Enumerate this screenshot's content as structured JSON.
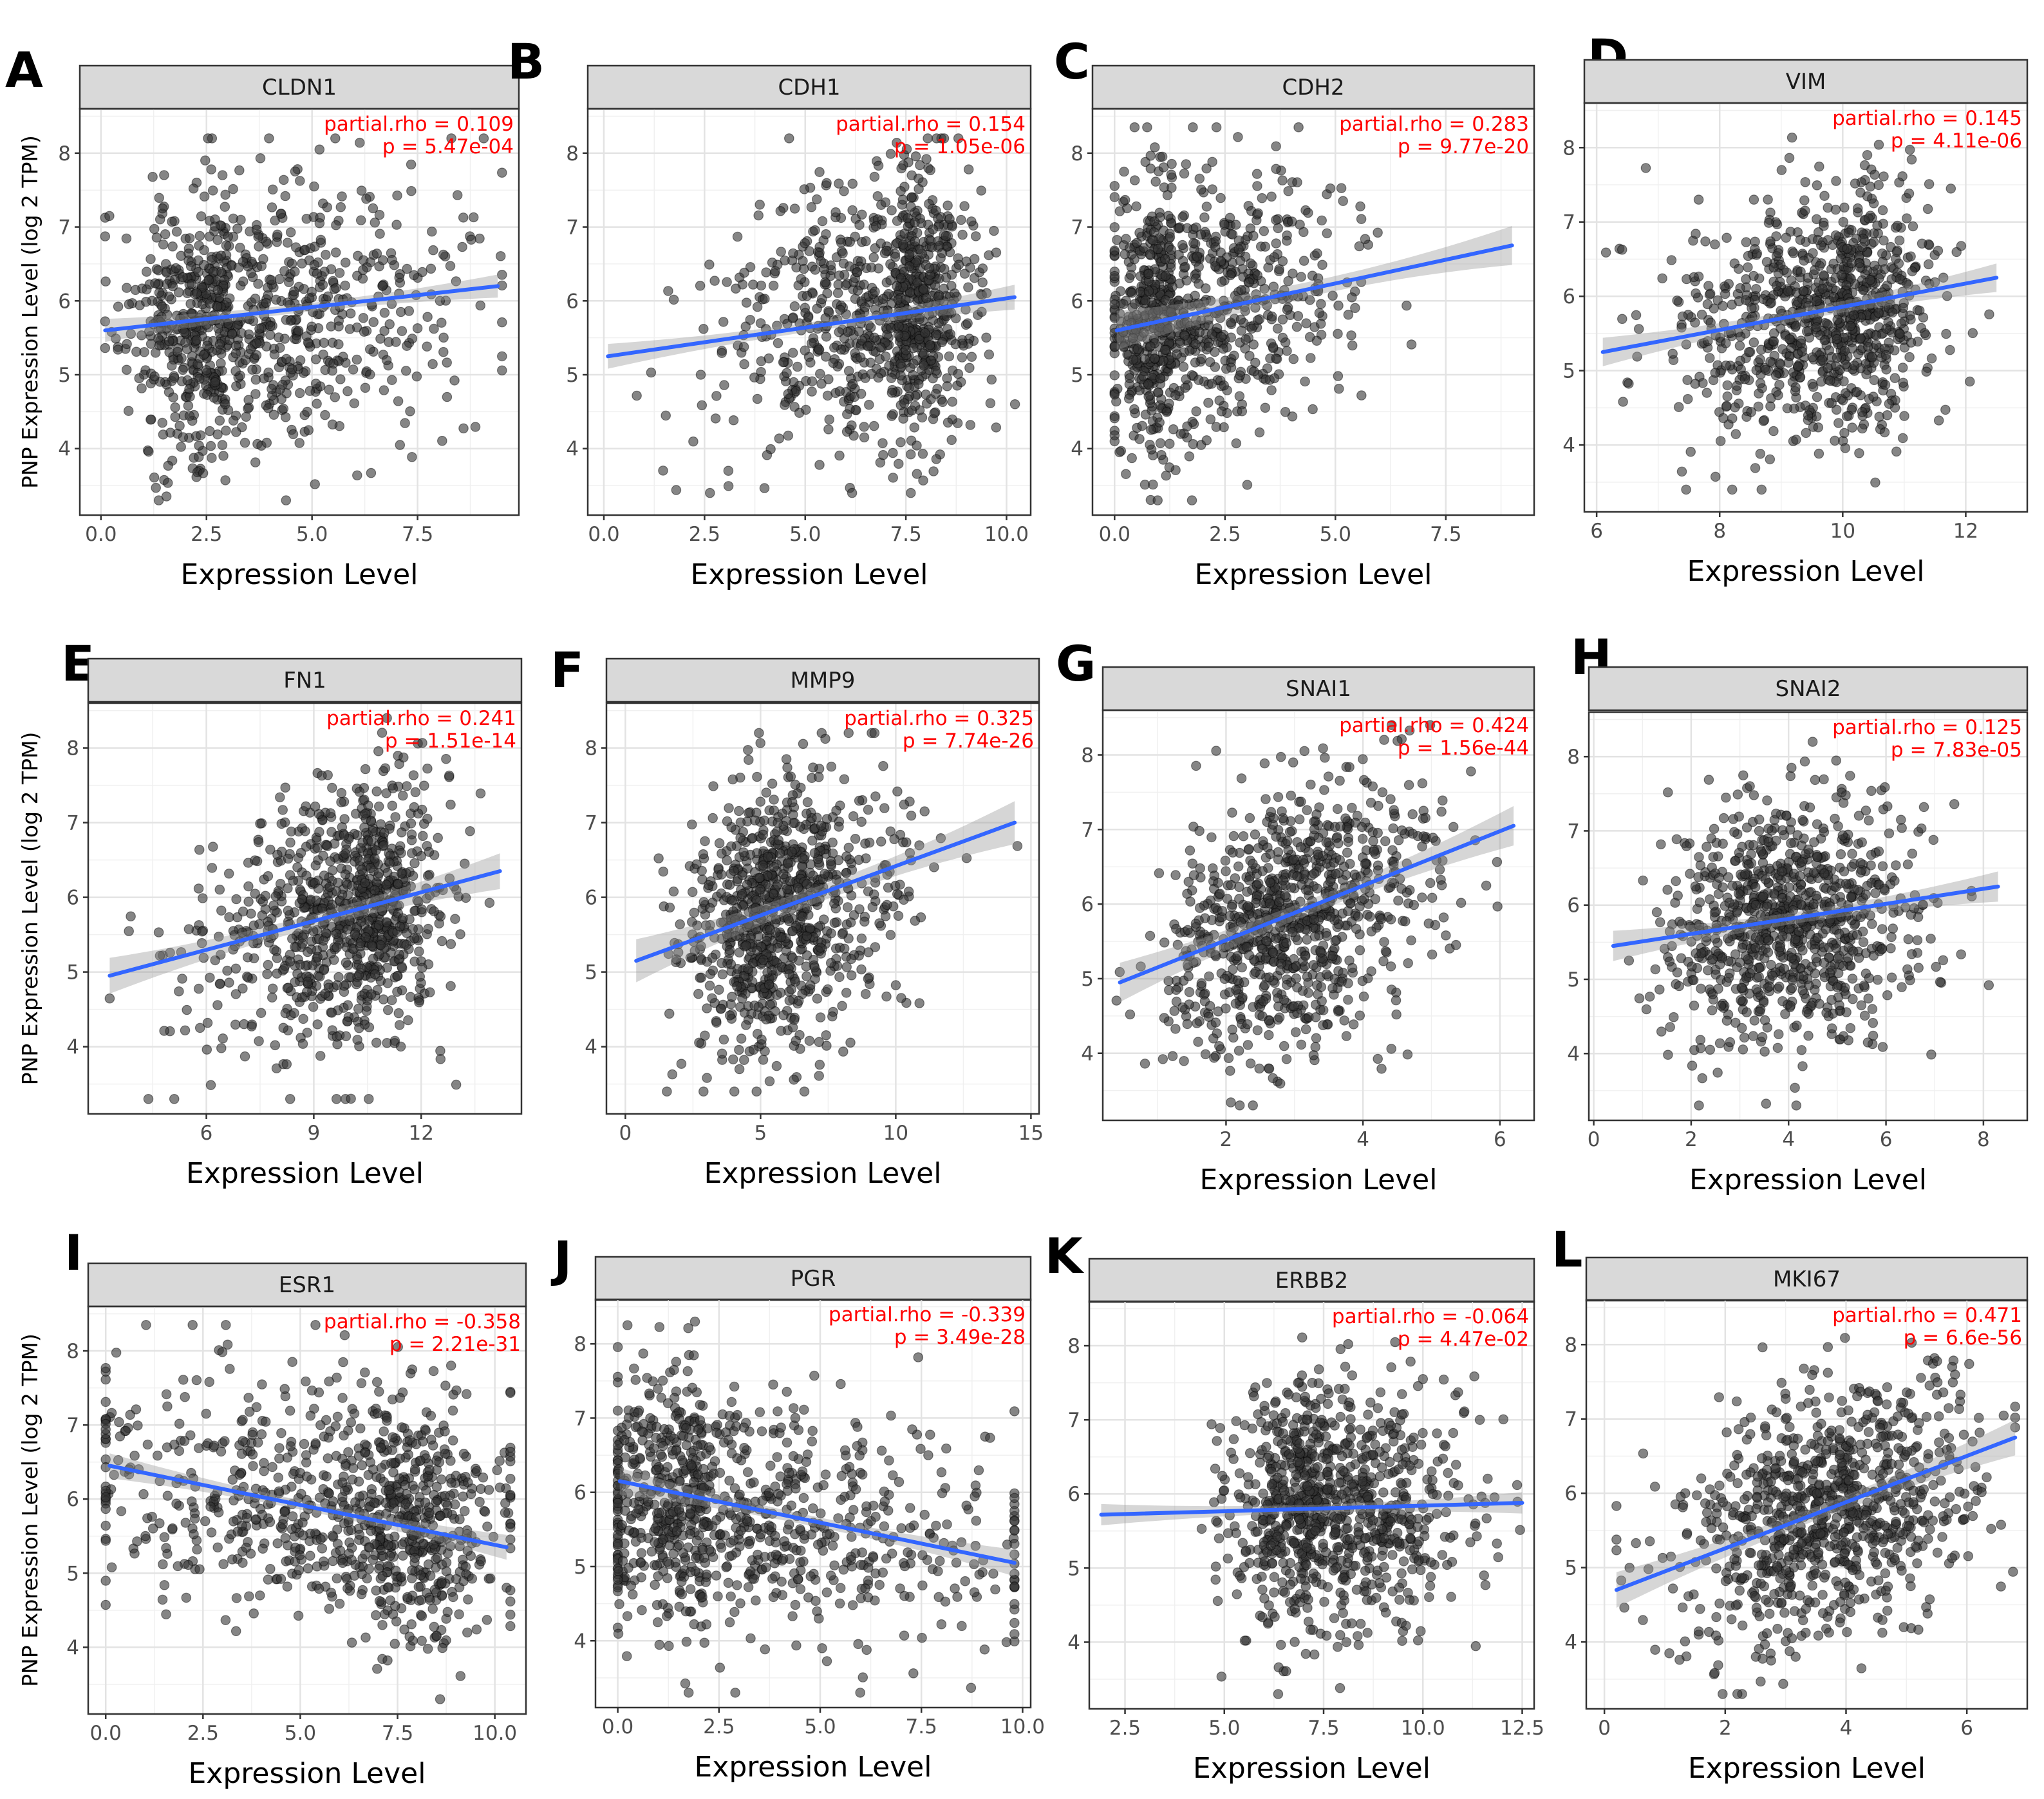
{
  "figure": {
    "y_axis_title": "PNP Expression Level (log 2 TPM)",
    "x_axis_title": "Expression Level"
  },
  "chart_data": [
    {
      "letter": "A",
      "type": "scatter",
      "title": "CLDN1",
      "rho_text": "partial.rho = 0.109",
      "p_text": "p = 5.47e-04",
      "xlim": [
        -0.5,
        9.9
      ],
      "ylim": [
        3.1,
        8.6
      ],
      "xticks": [
        0,
        2.5,
        5,
        7.5
      ],
      "xtick_labels": [
        "0.0",
        "2.5",
        "5.0",
        "7.5"
      ],
      "yticks": [
        4,
        5,
        6,
        7,
        8
      ],
      "ytick_labels": [
        "4",
        "5",
        "6",
        "7",
        "8"
      ],
      "fit": {
        "x0": 0.1,
        "y0": 5.6,
        "x1": 9.4,
        "y1": 6.2,
        "band": 0.13
      },
      "points": {
        "n": 900,
        "mean_x": 3.0,
        "sd_x": 1.8,
        "skew_x": 1.2,
        "min_x": 0.1,
        "max_x": 9.5,
        "mean_y": 5.75,
        "sd_y": 0.9,
        "min_y": 3.3,
        "max_y": 8.2,
        "seed": 11
      }
    },
    {
      "letter": "B",
      "type": "scatter",
      "title": "CDH1",
      "rho_text": "partial.rho = 0.154",
      "p_text": "p = 1.05e-06",
      "xlim": [
        -0.4,
        10.6
      ],
      "ylim": [
        3.1,
        8.6
      ],
      "xticks": [
        0,
        2.5,
        5,
        7.5,
        10
      ],
      "xtick_labels": [
        "0.0",
        "2.5",
        "5.0",
        "7.5",
        "10.0"
      ],
      "yticks": [
        4,
        5,
        6,
        7,
        8
      ],
      "ytick_labels": [
        "4",
        "5",
        "6",
        "7",
        "8"
      ],
      "fit": {
        "x0": 0.1,
        "y0": 5.25,
        "x1": 10.2,
        "y1": 6.05,
        "band": 0.14
      },
      "points": {
        "n": 900,
        "mean_x": 7.3,
        "sd_x": 1.4,
        "skew_x": -1.5,
        "min_x": 0.2,
        "max_x": 10.3,
        "mean_y": 5.85,
        "sd_y": 0.9,
        "min_y": 3.4,
        "max_y": 8.2,
        "seed": 23
      }
    },
    {
      "letter": "C",
      "type": "scatter",
      "title": "CDH2",
      "rho_text": "partial.rho = 0.283",
      "p_text": "p = 9.77e-20",
      "xlim": [
        -0.5,
        9.5
      ],
      "ylim": [
        3.1,
        8.6
      ],
      "xticks": [
        0,
        2.5,
        5,
        7.5
      ],
      "xtick_labels": [
        "0.0",
        "2.5",
        "5.0",
        "7.5"
      ],
      "yticks": [
        4,
        5,
        6,
        7,
        8
      ],
      "ytick_labels": [
        "4",
        "5",
        "6",
        "7",
        "8"
      ],
      "fit": {
        "x0": 0.05,
        "y0": 5.6,
        "x1": 9.0,
        "y1": 6.75,
        "band": 0.22
      },
      "points": {
        "n": 900,
        "mean_x": 1.3,
        "sd_x": 1.2,
        "skew_x": 1.6,
        "min_x": 0.0,
        "max_x": 9.0,
        "mean_y": 5.85,
        "sd_y": 0.9,
        "min_y": 3.3,
        "max_y": 8.35,
        "seed": 37
      }
    },
    {
      "letter": "D",
      "type": "scatter",
      "title": "VIM",
      "rho_text": "partial.rho = 0.145",
      "p_text": "p = 4.11e-06",
      "xlim": [
        5.8,
        13.0
      ],
      "ylim": [
        3.1,
        8.6
      ],
      "xticks": [
        6,
        8,
        10,
        12
      ],
      "xtick_labels": [
        "6",
        "8",
        "10",
        "12"
      ],
      "yticks": [
        4,
        5,
        6,
        7,
        8
      ],
      "ytick_labels": [
        "4",
        "5",
        "6",
        "7",
        "8"
      ],
      "fit": {
        "x0": 6.1,
        "y0": 5.25,
        "x1": 12.5,
        "y1": 6.25,
        "band": 0.16
      },
      "points": {
        "n": 900,
        "mean_x": 9.9,
        "sd_x": 1.0,
        "skew_x": -0.6,
        "min_x": 6.0,
        "max_x": 12.6,
        "mean_y": 5.8,
        "sd_y": 0.85,
        "min_y": 3.4,
        "max_y": 8.3,
        "seed": 41
      }
    },
    {
      "letter": "E",
      "type": "scatter",
      "title": "FN1",
      "rho_text": "partial.rho = 0.241",
      "p_text": "p = 1.51e-14",
      "xlim": [
        2.7,
        14.8
      ],
      "ylim": [
        3.1,
        8.6
      ],
      "xticks": [
        6,
        9,
        12
      ],
      "xtick_labels": [
        "6",
        "9",
        "12"
      ],
      "yticks": [
        4,
        5,
        6,
        7,
        8
      ],
      "ytick_labels": [
        "4",
        "5",
        "6",
        "7",
        "8"
      ],
      "fit": {
        "x0": 3.3,
        "y0": 4.95,
        "x1": 14.2,
        "y1": 6.35,
        "band": 0.2
      },
      "points": {
        "n": 900,
        "mean_x": 10.2,
        "sd_x": 1.6,
        "skew_x": -0.8,
        "min_x": 3.3,
        "max_x": 14.3,
        "mean_y": 5.8,
        "sd_y": 0.85,
        "min_y": 3.3,
        "max_y": 8.4,
        "seed": 53
      }
    },
    {
      "letter": "F",
      "type": "scatter",
      "title": "MMP9",
      "rho_text": "partial.rho = 0.325",
      "p_text": "p = 7.74e-26",
      "xlim": [
        -0.7,
        15.3
      ],
      "ylim": [
        3.1,
        8.6
      ],
      "xticks": [
        0,
        5,
        10,
        15
      ],
      "xtick_labels": [
        "0",
        "5",
        "10",
        "15"
      ],
      "yticks": [
        4,
        5,
        6,
        7,
        8
      ],
      "ytick_labels": [
        "4",
        "5",
        "6",
        "7",
        "8"
      ],
      "fit": {
        "x0": 0.4,
        "y0": 5.15,
        "x1": 14.4,
        "y1": 7.0,
        "band": 0.24
      },
      "points": {
        "n": 900,
        "mean_x": 5.6,
        "sd_x": 2.0,
        "skew_x": 0.4,
        "min_x": 0.3,
        "max_x": 14.5,
        "mean_y": 5.8,
        "sd_y": 0.85,
        "min_y": 3.4,
        "max_y": 8.2,
        "seed": 67
      }
    },
    {
      "letter": "G",
      "type": "scatter",
      "title": "SNAI1",
      "rho_text": "partial.rho = 0.424",
      "p_text": "p = 1.56e-44",
      "xlim": [
        0.2,
        6.5
      ],
      "ylim": [
        3.1,
        8.6
      ],
      "xticks": [
        2,
        4,
        6
      ],
      "xtick_labels": [
        "2",
        "4",
        "6"
      ],
      "yticks": [
        4,
        5,
        6,
        7,
        8
      ],
      "ytick_labels": [
        "4",
        "5",
        "6",
        "7",
        "8"
      ],
      "fit": {
        "x0": 0.45,
        "y0": 4.95,
        "x1": 6.2,
        "y1": 7.05,
        "band": 0.22
      },
      "points": {
        "n": 900,
        "mean_x": 2.9,
        "sd_x": 1.0,
        "skew_x": 0.3,
        "min_x": 0.4,
        "max_x": 6.3,
        "mean_y": 5.8,
        "sd_y": 0.85,
        "min_y": 3.3,
        "max_y": 8.4,
        "seed": 79
      }
    },
    {
      "letter": "H",
      "type": "scatter",
      "title": "SNAI2",
      "rho_text": "partial.rho = 0.125",
      "p_text": "p = 7.83e-05",
      "xlim": [
        -0.1,
        8.9
      ],
      "ylim": [
        3.1,
        8.6
      ],
      "xticks": [
        0,
        2,
        4,
        6,
        8
      ],
      "xtick_labels": [
        "0",
        "2",
        "4",
        "6",
        "8"
      ],
      "yticks": [
        4,
        5,
        6,
        7,
        8
      ],
      "ytick_labels": [
        "4",
        "5",
        "6",
        "7",
        "8"
      ],
      "fit": {
        "x0": 0.4,
        "y0": 5.45,
        "x1": 8.3,
        "y1": 6.25,
        "band": 0.17
      },
      "points": {
        "n": 900,
        "mean_x": 4.0,
        "sd_x": 1.3,
        "skew_x": 0.0,
        "min_x": 0.3,
        "max_x": 8.4,
        "mean_y": 5.8,
        "sd_y": 0.85,
        "min_y": 3.3,
        "max_y": 8.2,
        "seed": 83
      }
    },
    {
      "letter": "I",
      "type": "scatter",
      "title": "ESR1",
      "rho_text": "partial.rho = -0.358",
      "p_text": "p = 2.21e-31",
      "xlim": [
        -0.45,
        10.8
      ],
      "ylim": [
        3.1,
        8.6
      ],
      "xticks": [
        0,
        2.5,
        5,
        7.5,
        10
      ],
      "xtick_labels": [
        "0.0",
        "2.5",
        "5.0",
        "7.5",
        "10.0"
      ],
      "yticks": [
        4,
        5,
        6,
        7,
        8
      ],
      "ytick_labels": [
        "4",
        "5",
        "6",
        "7",
        "8"
      ],
      "fit": {
        "x0": 0.1,
        "y0": 6.45,
        "x1": 10.3,
        "y1": 5.35,
        "band": 0.14
      },
      "points": {
        "n": 900,
        "mean_x": 7.0,
        "sd_x": 2.6,
        "skew_x": -1.2,
        "min_x": 0.0,
        "max_x": 10.4,
        "mean_y": 5.8,
        "sd_y": 0.85,
        "min_y": 3.3,
        "max_y": 8.35,
        "seed": 97
      }
    },
    {
      "letter": "J",
      "type": "scatter",
      "title": "PGR",
      "rho_text": "partial.rho = -0.339",
      "p_text": "p = 3.49e-28",
      "xlim": [
        -0.55,
        10.2
      ],
      "ylim": [
        3.1,
        8.6
      ],
      "xticks": [
        0,
        2.5,
        5,
        7.5,
        10
      ],
      "xtick_labels": [
        "0.0",
        "2.5",
        "5.0",
        "7.5",
        "10.0"
      ],
      "yticks": [
        4,
        5,
        6,
        7,
        8
      ],
      "ytick_labels": [
        "4",
        "5",
        "6",
        "7",
        "8"
      ],
      "fit": {
        "x0": 0.05,
        "y0": 6.15,
        "x1": 9.8,
        "y1": 5.05,
        "band": 0.15
      },
      "points": {
        "n": 900,
        "mean_x": 2.2,
        "sd_x": 2.3,
        "skew_x": 2.0,
        "min_x": 0.0,
        "max_x": 9.8,
        "mean_y": 5.85,
        "sd_y": 0.85,
        "min_y": 3.3,
        "max_y": 8.4,
        "seed": 101
      }
    },
    {
      "letter": "K",
      "type": "scatter",
      "title": "ERBB2",
      "rho_text": "partial.rho = -0.064",
      "p_text": "p = 4.47e-02",
      "xlim": [
        1.6,
        12.8
      ],
      "ylim": [
        3.1,
        8.6
      ],
      "xticks": [
        2.5,
        5,
        7.5,
        10,
        12.5
      ],
      "xtick_labels": [
        "2.5",
        "5.0",
        "7.5",
        "10.0",
        "12.5"
      ],
      "yticks": [
        4,
        5,
        6,
        7,
        8
      ],
      "ytick_labels": [
        "4",
        "5",
        "6",
        "7",
        "8"
      ],
      "fit": {
        "x0": 1.9,
        "y0": 5.72,
        "x1": 12.5,
        "y1": 5.88,
        "band": 0.12
      },
      "points": {
        "n": 900,
        "mean_x": 7.4,
        "sd_x": 1.5,
        "skew_x": 0.7,
        "min_x": 1.9,
        "max_x": 12.5,
        "mean_y": 5.8,
        "sd_y": 0.85,
        "min_y": 3.3,
        "max_y": 8.3,
        "seed": 113
      }
    },
    {
      "letter": "L",
      "type": "scatter",
      "title": "MKI67",
      "rho_text": "partial.rho = 0.471",
      "p_text": "p = 6.6e-56",
      "xlim": [
        -0.3,
        7.0
      ],
      "ylim": [
        3.1,
        8.6
      ],
      "xticks": [
        0,
        2,
        4,
        6
      ],
      "xtick_labels": [
        "0",
        "2",
        "4",
        "6"
      ],
      "yticks": [
        4,
        5,
        6,
        7,
        8
      ],
      "ytick_labels": [
        "4",
        "5",
        "6",
        "7",
        "8"
      ],
      "fit": {
        "x0": 0.2,
        "y0": 4.7,
        "x1": 6.8,
        "y1": 6.75,
        "band": 0.2
      },
      "points": {
        "n": 900,
        "mean_x": 3.7,
        "sd_x": 1.2,
        "skew_x": 0.0,
        "min_x": 0.2,
        "max_x": 6.8,
        "mean_y": 5.8,
        "sd_y": 0.85,
        "min_y": 3.3,
        "max_y": 8.2,
        "seed": 127
      }
    }
  ]
}
